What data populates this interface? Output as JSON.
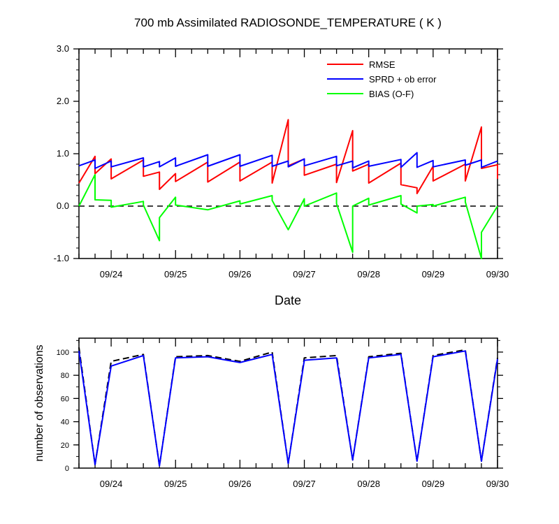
{
  "colors": {
    "rmse": "#ff0000",
    "spread": "#0000ff",
    "bias": "#00ff00",
    "axis": "#000000",
    "zero_line": "#000000",
    "obs_possible": "#000000",
    "obs_used": "#0000ff"
  },
  "chart_data": [
    {
      "type": "line",
      "title": "700 mb Assimilated RADIOSONDE_TEMPERATURE ( K )",
      "xlabel": "Date",
      "ylabel": "",
      "xlim": [
        "09/23 12:00",
        "09/30 00:00"
      ],
      "ylim": [
        -1.0,
        3.0
      ],
      "y_ticks": [
        -1.0,
        0.0,
        1.0,
        2.0,
        3.0
      ],
      "y_tick_labels": [
        "-1.0",
        "0.0",
        "1.0",
        "2.0",
        "3.0"
      ],
      "x_tick_labels": [
        "09/24",
        "09/25",
        "09/26",
        "09/27",
        "09/28",
        "09/29",
        "09/30"
      ],
      "grid": false,
      "legend_position": "top-right",
      "zero_line": "dashed",
      "series": [
        {
          "name": "RMSE",
          "color_key": "rmse",
          "points": [
            [
              "09/23 12:00",
              0.44
            ],
            [
              "09/23 18:00",
              0.95
            ],
            [
              "09/23 18:00",
              0.62
            ],
            [
              "09/24 00:00",
              0.9
            ],
            [
              "09/24 00:00",
              0.52
            ],
            [
              "09/24 12:00",
              0.88
            ],
            [
              "09/24 12:00",
              0.57
            ],
            [
              "09/24 18:00",
              0.65
            ],
            [
              "09/24 18:00",
              0.32
            ],
            [
              "09/25 00:00",
              0.62
            ],
            [
              "09/25 00:00",
              0.47
            ],
            [
              "09/25 12:00",
              0.84
            ],
            [
              "09/25 12:00",
              0.46
            ],
            [
              "09/26 00:00",
              0.84
            ],
            [
              "09/26 00:00",
              0.48
            ],
            [
              "09/26 12:00",
              0.84
            ],
            [
              "09/26 12:00",
              0.44
            ],
            [
              "09/26 18:00",
              1.65
            ],
            [
              "09/26 18:00",
              0.77
            ],
            [
              "09/27 00:00",
              0.9
            ],
            [
              "09/27 00:00",
              0.59
            ],
            [
              "09/27 12:00",
              0.8
            ],
            [
              "09/27 12:00",
              0.45
            ],
            [
              "09/27 18:00",
              1.44
            ],
            [
              "09/27 18:00",
              0.67
            ],
            [
              "09/28 00:00",
              0.8
            ],
            [
              "09/28 00:00",
              0.44
            ],
            [
              "09/28 12:00",
              0.82
            ],
            [
              "09/28 12:00",
              0.41
            ],
            [
              "09/28 18:00",
              0.35
            ],
            [
              "09/28 18:00",
              0.24
            ],
            [
              "09/29 00:00",
              0.76
            ],
            [
              "09/29 00:00",
              0.48
            ],
            [
              "09/29 12:00",
              0.8
            ],
            [
              "09/29 12:00",
              0.48
            ],
            [
              "09/29 18:00",
              1.51
            ],
            [
              "09/29 18:00",
              0.72
            ],
            [
              "09/30 00:00",
              0.79
            ],
            [
              "09/30 00:00",
              0.52
            ]
          ]
        },
        {
          "name": "SPRD + ob error",
          "color_key": "spread",
          "points": [
            [
              "09/23 12:00",
              0.77
            ],
            [
              "09/23 18:00",
              0.88
            ],
            [
              "09/23 18:00",
              0.72
            ],
            [
              "09/24 00:00",
              0.86
            ],
            [
              "09/24 00:00",
              0.75
            ],
            [
              "09/24 12:00",
              0.92
            ],
            [
              "09/24 12:00",
              0.75
            ],
            [
              "09/24 18:00",
              0.85
            ],
            [
              "09/24 18:00",
              0.75
            ],
            [
              "09/25 00:00",
              0.92
            ],
            [
              "09/25 00:00",
              0.76
            ],
            [
              "09/25 12:00",
              0.98
            ],
            [
              "09/25 12:00",
              0.76
            ],
            [
              "09/26 00:00",
              0.98
            ],
            [
              "09/26 00:00",
              0.76
            ],
            [
              "09/26 12:00",
              0.97
            ],
            [
              "09/26 12:00",
              0.76
            ],
            [
              "09/26 18:00",
              0.86
            ],
            [
              "09/26 18:00",
              0.75
            ],
            [
              "09/27 00:00",
              0.9
            ],
            [
              "09/27 00:00",
              0.77
            ],
            [
              "09/27 12:00",
              0.95
            ],
            [
              "09/27 12:00",
              0.77
            ],
            [
              "09/27 18:00",
              0.86
            ],
            [
              "09/27 18:00",
              0.73
            ],
            [
              "09/28 00:00",
              0.86
            ],
            [
              "09/28 00:00",
              0.76
            ],
            [
              "09/28 12:00",
              0.89
            ],
            [
              "09/28 12:00",
              0.74
            ],
            [
              "09/28 18:00",
              1.02
            ],
            [
              "09/28 18:00",
              0.74
            ],
            [
              "09/29 00:00",
              0.87
            ],
            [
              "09/29 00:00",
              0.75
            ],
            [
              "09/29 12:00",
              0.88
            ],
            [
              "09/29 12:00",
              0.78
            ],
            [
              "09/29 18:00",
              0.88
            ],
            [
              "09/29 18:00",
              0.74
            ],
            [
              "09/30 00:00",
              0.86
            ]
          ]
        },
        {
          "name": "BIAS (O-F)",
          "color_key": "bias",
          "points": [
            [
              "09/23 12:00",
              0.0
            ],
            [
              "09/23 18:00",
              0.6
            ],
            [
              "09/23 18:00",
              0.12
            ],
            [
              "09/24 00:00",
              0.11
            ],
            [
              "09/24 00:00",
              -0.02
            ],
            [
              "09/24 12:00",
              0.09
            ],
            [
              "09/24 12:00",
              0.02
            ],
            [
              "09/24 18:00",
              -0.66
            ],
            [
              "09/24 18:00",
              -0.22
            ],
            [
              "09/25 00:00",
              0.17
            ],
            [
              "09/25 00:00",
              0.02
            ],
            [
              "09/25 12:00",
              -0.07
            ],
            [
              "09/26 00:00",
              0.1
            ],
            [
              "09/26 00:00",
              0.04
            ],
            [
              "09/26 12:00",
              0.2
            ],
            [
              "09/26 12:00",
              0.11
            ],
            [
              "09/26 18:00",
              -0.45
            ],
            [
              "09/27 00:00",
              0.14
            ],
            [
              "09/27 00:00",
              0.0
            ],
            [
              "09/27 12:00",
              0.25
            ],
            [
              "09/27 12:00",
              0.05
            ],
            [
              "09/27 18:00",
              -0.88
            ],
            [
              "09/27 18:00",
              0.0
            ],
            [
              "09/28 00:00",
              0.15
            ],
            [
              "09/28 00:00",
              0.02
            ],
            [
              "09/28 12:00",
              0.2
            ],
            [
              "09/28 12:00",
              0.04
            ],
            [
              "09/28 18:00",
              -0.13
            ],
            [
              "09/28 18:00",
              0.0
            ],
            [
              "09/29 00:00",
              0.03
            ],
            [
              "09/29 00:00",
              0.0
            ],
            [
              "09/29 12:00",
              0.17
            ],
            [
              "09/29 12:00",
              0.08
            ],
            [
              "09/29 18:00",
              -1.0
            ],
            [
              "09/29 18:00",
              -0.5
            ],
            [
              "09/30 00:00",
              0.0
            ]
          ]
        }
      ]
    },
    {
      "type": "line",
      "title": "",
      "xlabel": "",
      "ylabel": "number of observations",
      "xlim": [
        "09/23 12:00",
        "09/30 00:00"
      ],
      "ylim": [
        0,
        112
      ],
      "y_ticks": [
        0,
        20,
        40,
        60,
        80,
        100
      ],
      "y_tick_labels": [
        "0",
        "20",
        "40",
        "60",
        "80",
        "100"
      ],
      "x_tick_labels": [
        "09/24",
        "09/25",
        "09/26",
        "09/27",
        "09/28",
        "09/29",
        "09/30"
      ],
      "grid": false,
      "series": [
        {
          "color_key": "obs_possible",
          "style": "dashed",
          "points": [
            [
              "09/23 12:00",
              104
            ],
            [
              "09/23 18:00",
              3
            ],
            [
              "09/24 00:00",
              92
            ],
            [
              "09/24 12:00",
              98
            ],
            [
              "09/24 18:00",
              2
            ],
            [
              "09/25 00:00",
              96
            ],
            [
              "09/25 12:00",
              97
            ],
            [
              "09/26 00:00",
              92
            ],
            [
              "09/26 12:00",
              100
            ],
            [
              "09/26 18:00",
              4
            ],
            [
              "09/27 00:00",
              95
            ],
            [
              "09/27 12:00",
              97
            ],
            [
              "09/27 18:00",
              7
            ],
            [
              "09/28 00:00",
              96
            ],
            [
              "09/28 12:00",
              99
            ],
            [
              "09/28 18:00",
              6
            ],
            [
              "09/29 00:00",
              97
            ],
            [
              "09/29 12:00",
              102
            ],
            [
              "09/29 18:00",
              6
            ],
            [
              "09/30 00:00",
              95
            ]
          ]
        },
        {
          "color_key": "obs_used",
          "style": "solid",
          "points": [
            [
              "09/23 12:00",
              101
            ],
            [
              "09/23 18:00",
              3
            ],
            [
              "09/24 00:00",
              88
            ],
            [
              "09/24 12:00",
              97
            ],
            [
              "09/24 18:00",
              2
            ],
            [
              "09/25 00:00",
              95
            ],
            [
              "09/25 12:00",
              96
            ],
            [
              "09/26 00:00",
              91
            ],
            [
              "09/26 12:00",
              98
            ],
            [
              "09/26 18:00",
              4
            ],
            [
              "09/27 00:00",
              93
            ],
            [
              "09/27 12:00",
              95
            ],
            [
              "09/27 18:00",
              7
            ],
            [
              "09/28 00:00",
              95
            ],
            [
              "09/28 12:00",
              98
            ],
            [
              "09/28 18:00",
              6
            ],
            [
              "09/29 00:00",
              96
            ],
            [
              "09/29 12:00",
              101
            ],
            [
              "09/29 18:00",
              6
            ],
            [
              "09/30 00:00",
              94
            ]
          ]
        }
      ]
    }
  ]
}
